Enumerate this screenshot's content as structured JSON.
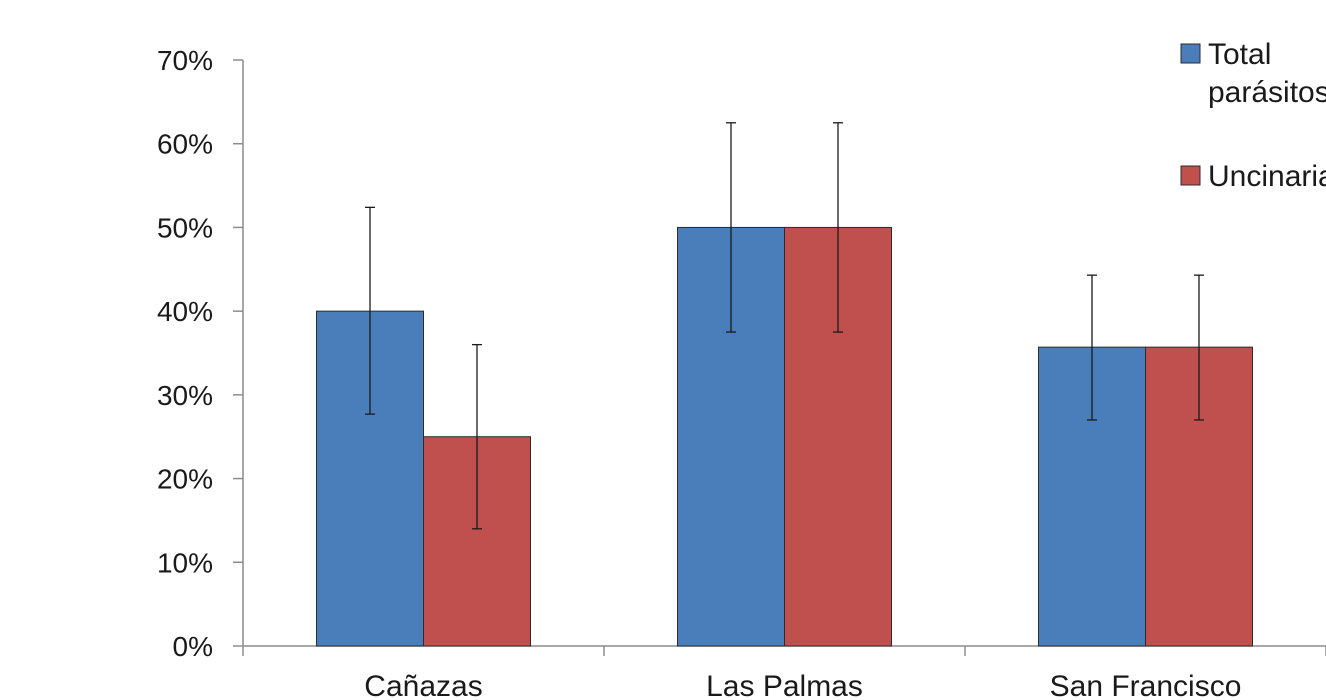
{
  "chart_data": {
    "type": "bar",
    "title": "",
    "xlabel": "",
    "ylabel": "",
    "ylim": [
      0,
      70
    ],
    "y_ticks": [
      0,
      10,
      20,
      30,
      40,
      50,
      60,
      70
    ],
    "y_tick_labels": [
      "0%",
      "10%",
      "20%",
      "30%",
      "40%",
      "50%",
      "60%",
      "70%"
    ],
    "categories": [
      "Cañazas",
      "Las Palmas",
      "San Francisco"
    ],
    "series": [
      {
        "name": "Total parásitos",
        "color": "#4a7ebb",
        "values": [
          40,
          50,
          35.7
        ],
        "error_low": [
          27.7,
          37.5,
          27
        ],
        "error_high": [
          52.4,
          62.5,
          44.3
        ]
      },
      {
        "name": "Uncinarias",
        "color": "#c0504d",
        "values": [
          25,
          50,
          35.7
        ],
        "error_low": [
          14,
          37.5,
          27
        ],
        "error_high": [
          36,
          62.5,
          44.3
        ]
      }
    ],
    "legend": {
      "position": "top-right",
      "entries": [
        {
          "lines": [
            "Total",
            "parásitos"
          ]
        },
        {
          "lines": [
            "Uncinarias"
          ]
        }
      ]
    },
    "grid": false
  }
}
